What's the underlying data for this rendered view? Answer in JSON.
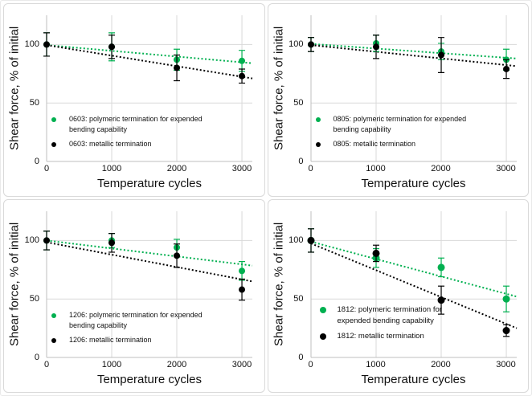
{
  "colors": {
    "polymeric_green": "#00b050",
    "metallic_black": "#000000",
    "gridline": "#d9d9d9",
    "axis": "#bfbfbf",
    "text": "#111111"
  },
  "charts": [
    {
      "id": "0603",
      "type": "scatter",
      "ylabel": "Shear force, % of initial",
      "xlabel": "Temperature cycles",
      "xlim": [
        0,
        3160
      ],
      "ylim": [
        0,
        125
      ],
      "x_ticks": [
        0,
        1000,
        2000,
        3000
      ],
      "x_tick_labels": [
        "0",
        "1000",
        "2000",
        "3000"
      ],
      "y_ticks": [
        0,
        50,
        100
      ],
      "y_tick_labels": [
        "0",
        "50",
        "100"
      ],
      "grid": "on",
      "legend_position": "inside-lower-left",
      "series": [
        {
          "key": "polymeric",
          "name": "0603: polymeric termination for expended bending capability",
          "color": "#00b050",
          "line_style": "dotted-trend",
          "x": [
            0,
            1000,
            2000,
            3000
          ],
          "y": [
            100,
            98,
            87,
            86
          ],
          "yerr": [
            10,
            12,
            9,
            9
          ],
          "trend": [
            99.5,
            84
          ]
        },
        {
          "key": "metallic",
          "name": "0603: metallic termination",
          "color": "#000000",
          "line_style": "dotted-trend",
          "x": [
            0,
            1000,
            2000,
            3000
          ],
          "y": [
            100,
            98,
            80,
            73
          ],
          "yerr": [
            10,
            10,
            11,
            6
          ],
          "trend": [
            99.5,
            71
          ]
        }
      ]
    },
    {
      "id": "0805",
      "type": "scatter",
      "ylabel": "Shear force, % of initial",
      "xlabel": "Temperature cycles",
      "xlim": [
        0,
        3160
      ],
      "ylim": [
        0,
        125
      ],
      "x_ticks": [
        0,
        1000,
        2000,
        3000
      ],
      "x_tick_labels": [
        "0",
        "1000",
        "2000",
        "3000"
      ],
      "y_ticks": [
        0,
        50,
        100
      ],
      "y_tick_labels": [
        "0",
        "50",
        "100"
      ],
      "grid": "on",
      "legend_position": "inside-lower-left",
      "series": [
        {
          "key": "polymeric",
          "name": "0805: polymeric termination for expended bending capability",
          "color": "#00b050",
          "line_style": "dotted-trend",
          "x": [
            0,
            1000,
            2000,
            3000
          ],
          "y": [
            100,
            101,
            94,
            87
          ],
          "yerr": [
            6,
            7,
            7,
            9
          ],
          "trend": [
            100.5,
            88
          ]
        },
        {
          "key": "metallic",
          "name": "0805: metallic termination",
          "color": "#000000",
          "line_style": "dotted-trend",
          "x": [
            0,
            1000,
            2000,
            3000
          ],
          "y": [
            100,
            98,
            91,
            79
          ],
          "yerr": [
            6,
            10,
            15,
            8
          ],
          "trend": [
            99.5,
            81.5
          ]
        }
      ]
    },
    {
      "id": "1206",
      "type": "scatter",
      "ylabel": "Shear force, % of initial",
      "xlabel": "Temperature cycles",
      "xlim": [
        0,
        3160
      ],
      "ylim": [
        0,
        125
      ],
      "x_ticks": [
        0,
        1000,
        2000,
        3000
      ],
      "x_tick_labels": [
        "0",
        "1000",
        "2000",
        "3000"
      ],
      "y_ticks": [
        0,
        50,
        100
      ],
      "y_tick_labels": [
        "0",
        "50",
        "100"
      ],
      "grid": "on",
      "legend_position": "inside-lower-left",
      "series": [
        {
          "key": "polymeric",
          "name": "1206: polymeric termination for expended bending capability",
          "color": "#00b050",
          "line_style": "dotted-trend",
          "x": [
            0,
            1000,
            2000,
            3000
          ],
          "y": [
            100,
            100,
            94,
            74
          ],
          "yerr": [
            8,
            6,
            7,
            8
          ],
          "trend": [
            100,
            78.5
          ]
        },
        {
          "key": "metallic",
          "name": "1206: metallic termination",
          "color": "#000000",
          "line_style": "dotted-trend",
          "x": [
            0,
            1000,
            2000,
            3000
          ],
          "y": [
            100,
            98,
            87,
            58
          ],
          "yerr": [
            8,
            8,
            10,
            9
          ],
          "trend": [
            98.5,
            65
          ]
        }
      ]
    },
    {
      "id": "1812",
      "type": "scatter",
      "ylabel": "Shear force, % of initial",
      "xlabel": "Temperature cycles",
      "xlim": [
        0,
        3160
      ],
      "ylim": [
        0,
        125
      ],
      "x_ticks": [
        0,
        1000,
        2000,
        3000
      ],
      "x_tick_labels": [
        "0",
        "1000",
        "2000",
        "3000"
      ],
      "y_ticks": [
        0,
        50,
        100
      ],
      "y_tick_labels": [
        "0",
        "50",
        "100"
      ],
      "grid": "on",
      "legend_position": "inside-lower-left",
      "series": [
        {
          "key": "polymeric",
          "name": "1812: polymeric termination for expended bending capability",
          "color": "#00b050",
          "line_style": "dotted-trend",
          "x": [
            0,
            1000,
            2000,
            3000
          ],
          "y": [
            100,
            85,
            77,
            50
          ],
          "yerr": [
            10,
            8,
            8,
            11
          ],
          "trend": [
            99,
            52
          ]
        },
        {
          "key": "metallic",
          "name": "1812: metallic termination",
          "color": "#000000",
          "line_style": "dotted-trend",
          "x": [
            0,
            1000,
            2000,
            3000
          ],
          "y": [
            100,
            89,
            49,
            23
          ],
          "yerr": [
            10,
            7,
            12,
            5
          ],
          "trend": [
            97.5,
            25
          ]
        }
      ]
    }
  ]
}
